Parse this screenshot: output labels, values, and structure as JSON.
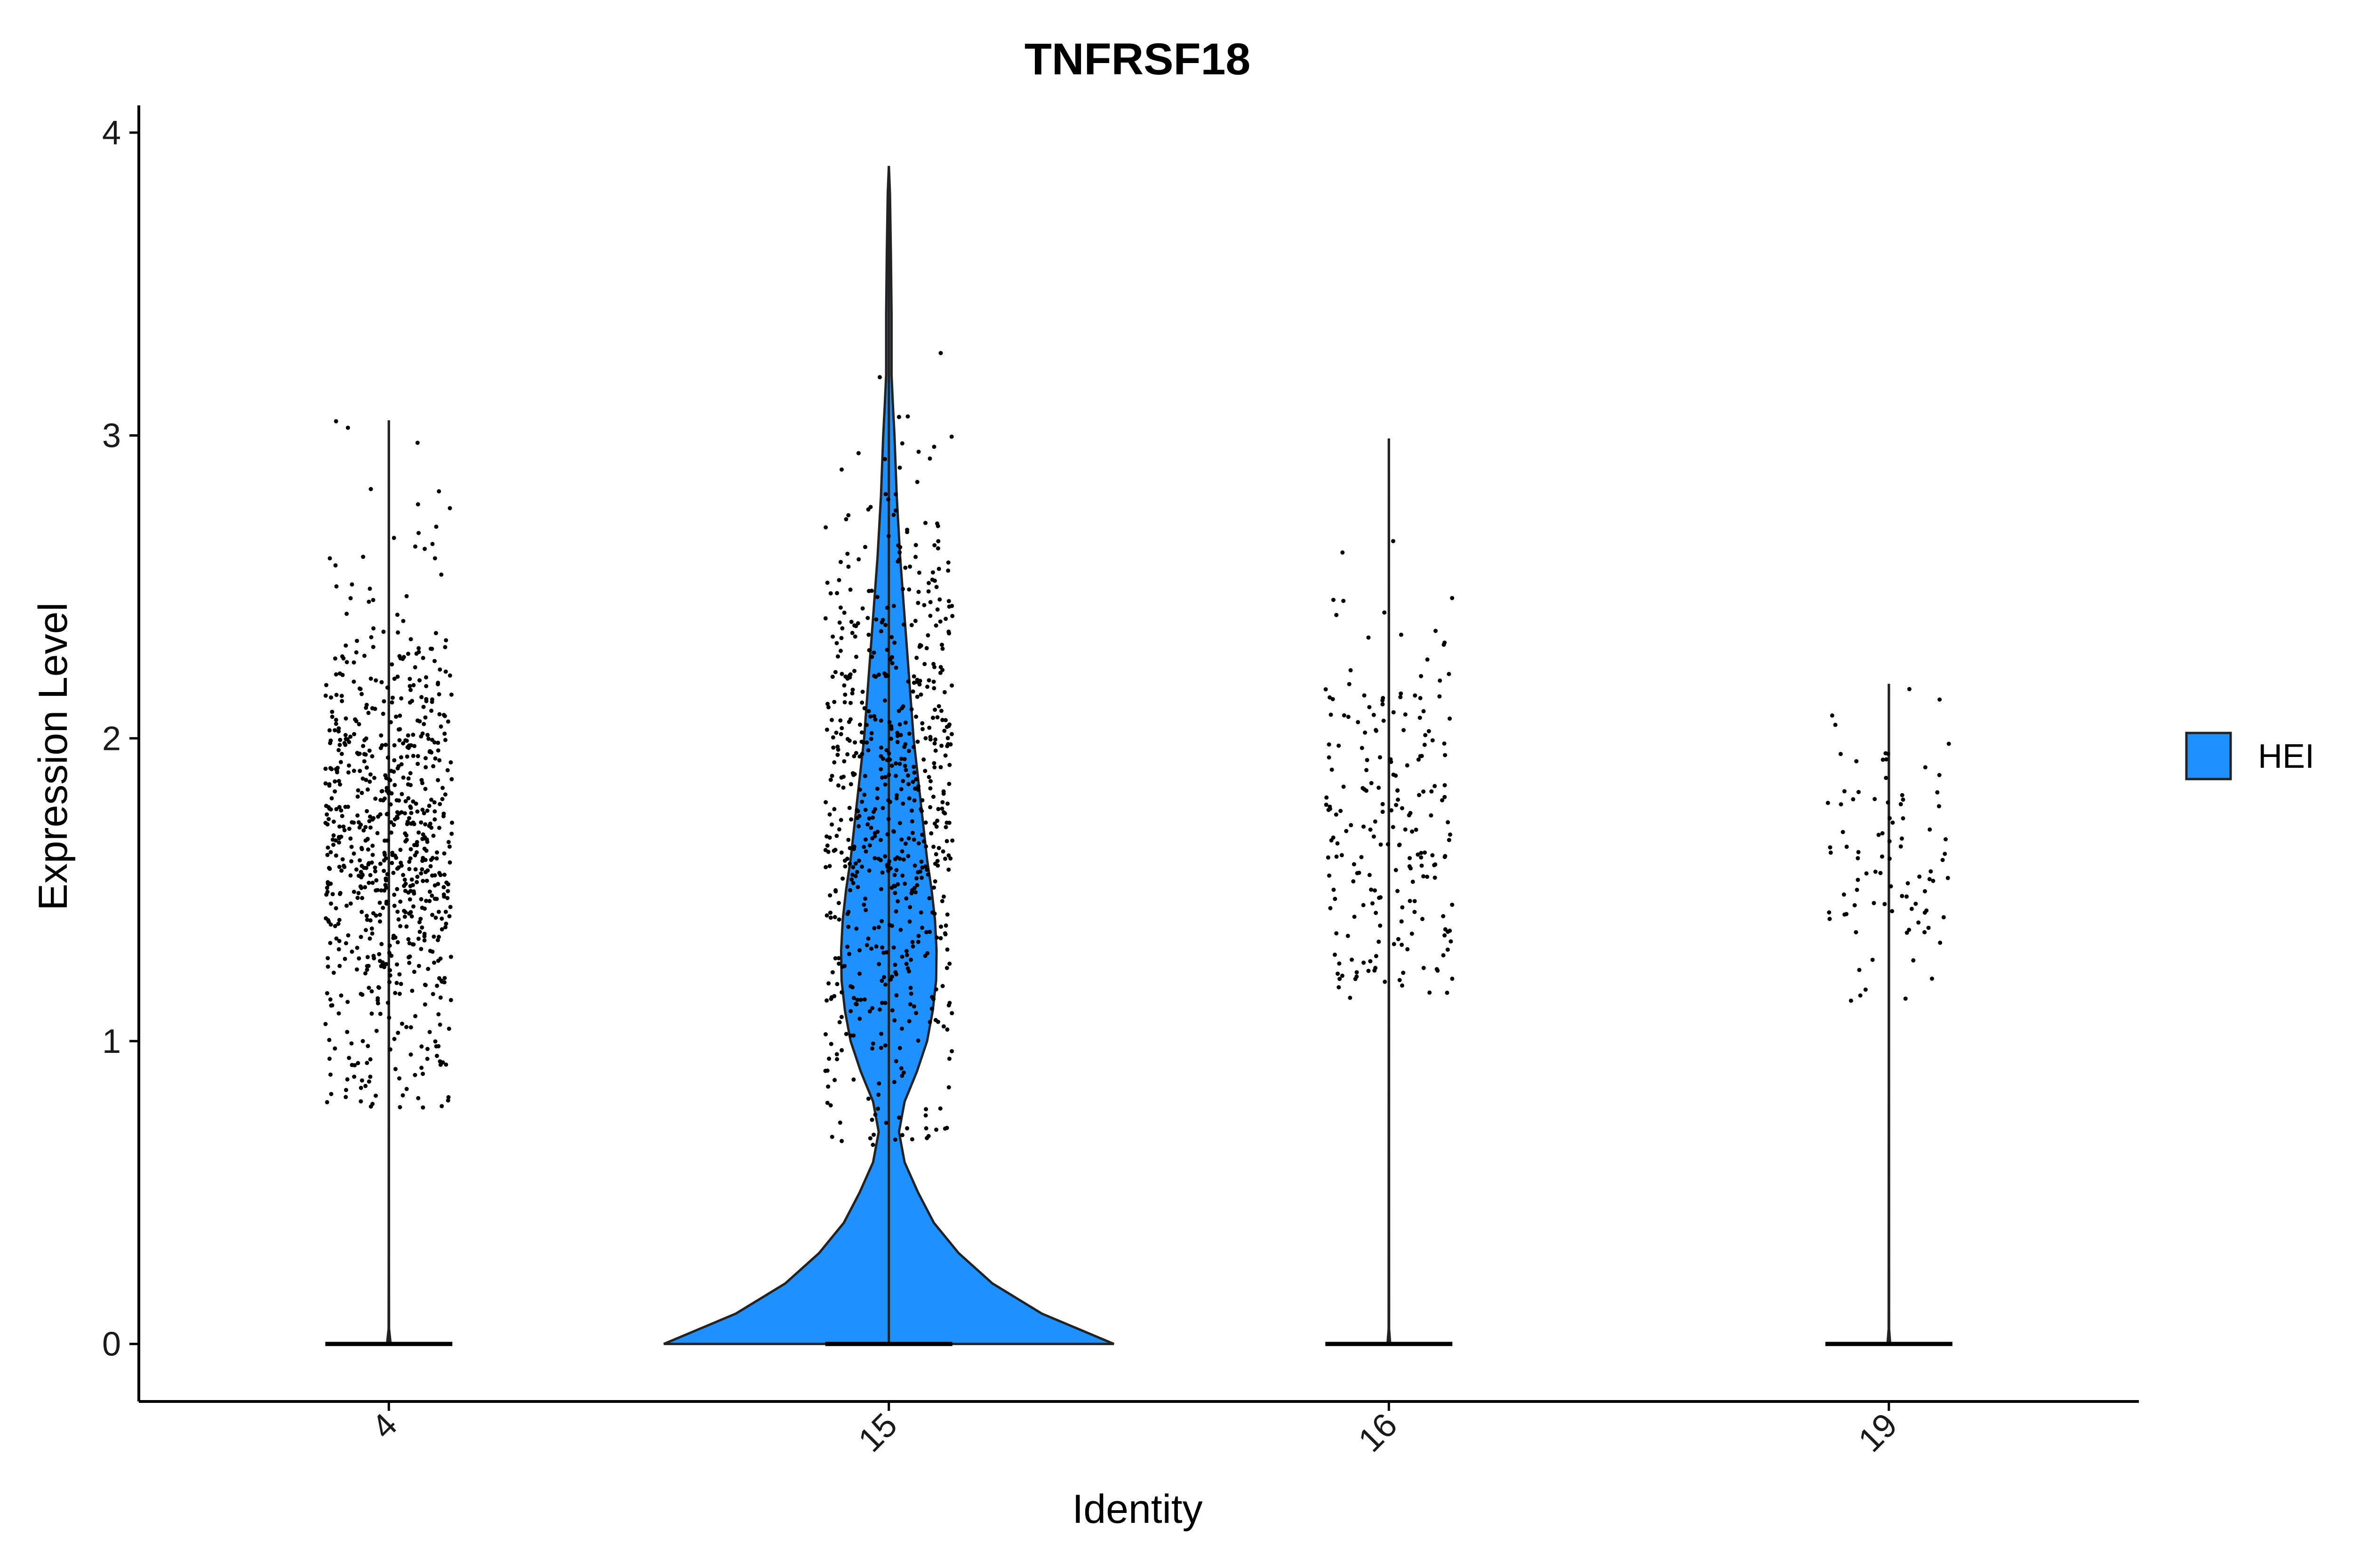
{
  "chart_data": {
    "type": "violin",
    "title": "TNFRSF18",
    "xlabel": "Identity",
    "ylabel": "Expression Level",
    "ylim": [
      -0.19,
      4.09
    ],
    "yticks": [
      "0",
      "1",
      "2",
      "3",
      "4"
    ],
    "categories": [
      "4",
      "15",
      "16",
      "19"
    ],
    "legend": {
      "placement": "right",
      "entries": [
        {
          "name": "HEI",
          "color": "#1E90FF"
        }
      ]
    },
    "grid": false,
    "violins": [
      {
        "category": "4",
        "fill": "#1E90FF",
        "max": 3.05,
        "profile": [
          [
            0,
            0.008
          ],
          [
            0.05,
            0.001
          ],
          [
            0.3,
            0.0005
          ],
          [
            3.05,
            0
          ]
        ],
        "nonzero_cells": {
          "count": 760,
          "min": 0.78,
          "max": 3.06,
          "mean": 1.65,
          "sd": 0.42
        }
      },
      {
        "category": "15",
        "fill": "#1E90FF",
        "max": 3.89,
        "profile": [
          [
            0,
            1.0
          ],
          [
            0.1,
            0.68
          ],
          [
            0.2,
            0.46
          ],
          [
            0.3,
            0.31
          ],
          [
            0.4,
            0.2
          ],
          [
            0.5,
            0.13
          ],
          [
            0.6,
            0.07
          ],
          [
            0.7,
            0.045
          ],
          [
            0.8,
            0.07
          ],
          [
            0.9,
            0.125
          ],
          [
            1.0,
            0.17
          ],
          [
            1.1,
            0.195
          ],
          [
            1.2,
            0.21
          ],
          [
            1.3,
            0.212
          ],
          [
            1.4,
            0.205
          ],
          [
            1.5,
            0.19
          ],
          [
            1.6,
            0.17
          ],
          [
            1.8,
            0.14
          ],
          [
            2.0,
            0.11
          ],
          [
            2.2,
            0.09
          ],
          [
            2.4,
            0.07
          ],
          [
            2.6,
            0.05
          ],
          [
            2.8,
            0.035
          ],
          [
            3.0,
            0.025
          ],
          [
            3.1,
            0.018
          ],
          [
            3.2,
            0.012
          ],
          [
            3.4,
            0.012
          ],
          [
            3.6,
            0.009
          ],
          [
            3.8,
            0.005
          ],
          [
            3.89,
            0
          ]
        ],
        "nonzero_cells": {
          "count": 680,
          "min": 0.65,
          "max": 3.89,
          "mean": 1.75,
          "sd": 0.55
        }
      },
      {
        "category": "16",
        "fill": "#1E90FF",
        "max": 2.99,
        "profile": [
          [
            0,
            0.006
          ],
          [
            0.05,
            0.001
          ],
          [
            2.99,
            0
          ]
        ],
        "nonzero_cells": {
          "count": 210,
          "min": 1.13,
          "max": 2.99,
          "mean": 1.7,
          "sd": 0.38
        }
      },
      {
        "category": "19",
        "fill": "#1E90FF",
        "max": 2.18,
        "profile": [
          [
            0,
            0.006
          ],
          [
            0.05,
            0.001
          ],
          [
            2.18,
            0
          ]
        ],
        "nonzero_cells": {
          "count": 90,
          "min": 1.12,
          "max": 2.18,
          "mean": 1.55,
          "sd": 0.24
        }
      }
    ]
  }
}
